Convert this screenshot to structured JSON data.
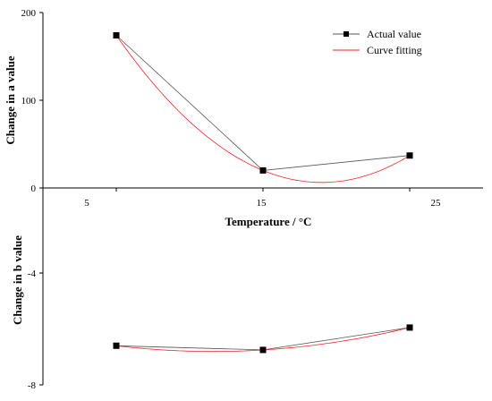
{
  "chart_data": [
    {
      "type": "line",
      "x": [
        5,
        15,
        25
      ],
      "xticks": [
        "5",
        "15",
        "25"
      ],
      "xlim": [
        0,
        30
      ],
      "xlabel": "Temperature / °C",
      "ylabel": "Change in a value",
      "ylim": [
        0,
        200
      ],
      "yticks": [
        "0",
        "100",
        "200"
      ],
      "legend_position": "top-right",
      "series": [
        {
          "name": "Actual value",
          "values": [
            174,
            20,
            37
          ],
          "color": "#000000",
          "line_color": "#555555",
          "marker": "square"
        },
        {
          "name": "Curve fitting",
          "values": [
            174,
            20,
            37
          ],
          "color": "#e8262b",
          "smooth": true
        }
      ]
    },
    {
      "type": "line",
      "x": [
        5,
        15,
        25
      ],
      "xlim": [
        0,
        30
      ],
      "ylabel": "Change in b value",
      "ylim": [
        -8,
        -1
      ],
      "yticks": [
        "-4",
        "-8"
      ],
      "series": [
        {
          "values": [
            -6.6,
            -6.75,
            -5.95
          ],
          "color": "#000000",
          "line_color": "#555555",
          "marker": "square"
        },
        {
          "values": [
            -6.6,
            -6.75,
            -5.95
          ],
          "color": "#e8262b",
          "smooth": true
        }
      ]
    }
  ]
}
